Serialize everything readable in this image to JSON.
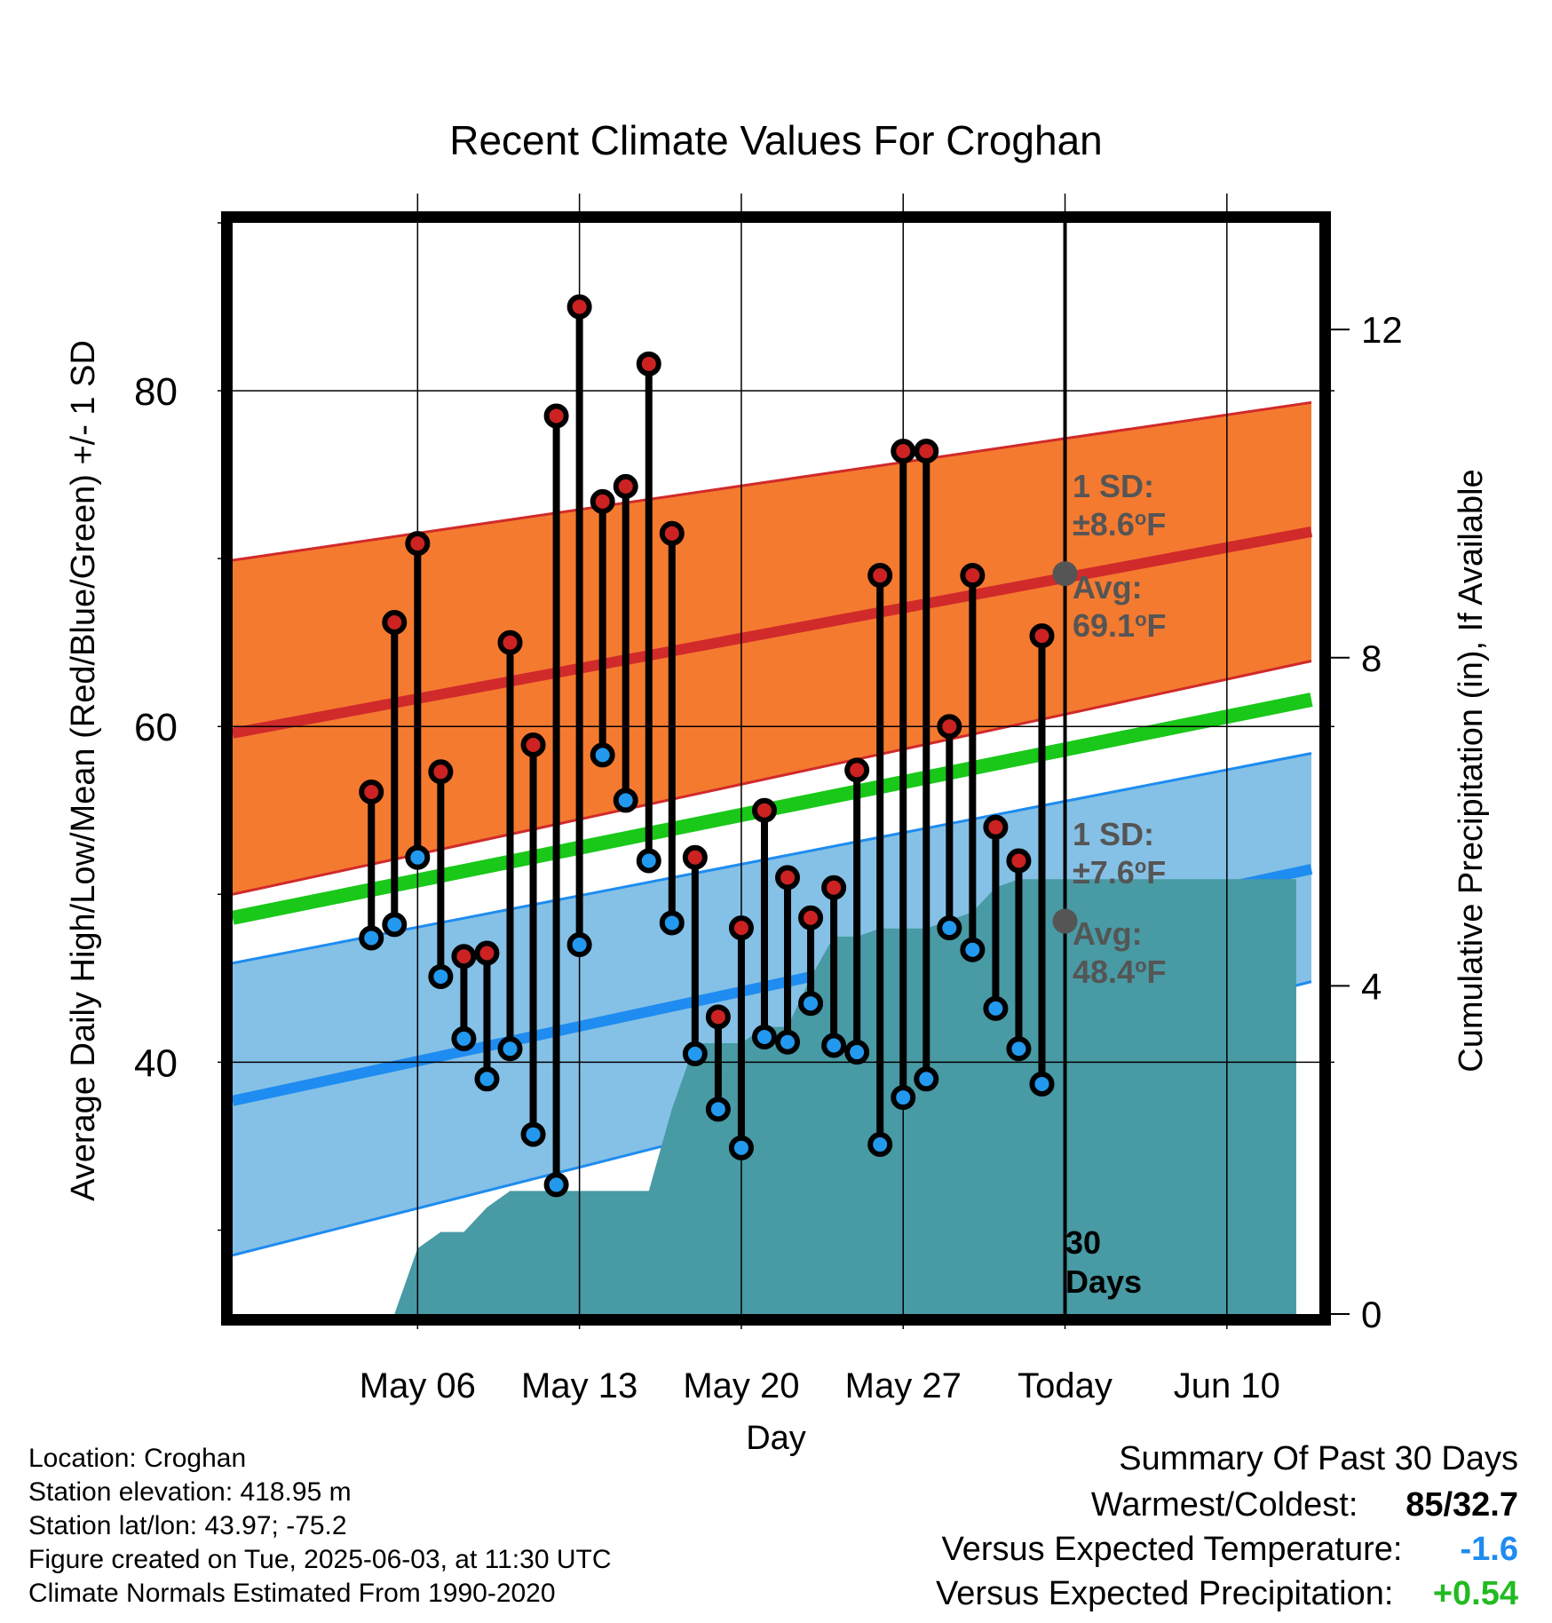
{
  "chart_data": {
    "type": "line",
    "title": "Recent Climate Values For Croghan",
    "xlabel": "Day",
    "ylabel": "Average Daily High/Low/Mean (Red/Blue/Green) +/- 1 SD",
    "y2label": "Cumulative Precipitation (in), If Available",
    "x_day_range": [
      -36,
      11
    ],
    "ylim": [
      25,
      90
    ],
    "y2lim": [
      0,
      13.3
    ],
    "yticks": [
      40,
      60,
      80
    ],
    "y2ticks": [
      0,
      4,
      8,
      12
    ],
    "x_ticks": [
      {
        "label": "May 06",
        "day": -28
      },
      {
        "label": "May 13",
        "day": -21
      },
      {
        "label": "May 20",
        "day": -14
      },
      {
        "label": "May 27",
        "day": -7
      },
      {
        "label": "Today",
        "day": 0
      },
      {
        "label": "Jun 10",
        "day": 7
      }
    ],
    "normals": {
      "high_avg": {
        "start": 59.6,
        "end": 71.6
      },
      "high_upper": {
        "start": 69.9,
        "end": 79.3
      },
      "high_lower": {
        "start": 50.0,
        "end": 63.9
      },
      "low_avg": {
        "start": 37.7,
        "end": 51.5
      },
      "low_upper": {
        "start": 45.9,
        "end": 58.4
      },
      "low_lower": {
        "start": 28.5,
        "end": 44.8
      },
      "mean": {
        "start": 48.6,
        "end": 61.6
      }
    },
    "daily": {
      "days": [
        -30,
        -29,
        -28,
        -27,
        -26,
        -25,
        -24,
        -23,
        -22,
        -21,
        -20,
        -19,
        -18,
        -17,
        -16,
        -15,
        -14,
        -13,
        -12,
        -11,
        -10,
        -9,
        -8,
        -7,
        -6,
        -5,
        -4,
        -3,
        -2,
        -1
      ],
      "high": [
        56.1,
        66.2,
        70.9,
        57.3,
        46.3,
        46.5,
        65.0,
        58.9,
        78.5,
        85.0,
        73.4,
        74.3,
        81.6,
        71.5,
        52.2,
        42.7,
        48.0,
        55.0,
        51.0,
        48.6,
        50.4,
        57.4,
        69.0,
        76.4,
        76.4,
        60.0,
        69.0,
        54.0,
        52.0,
        65.4
      ],
      "low": [
        47.4,
        48.2,
        52.2,
        45.1,
        41.4,
        39.0,
        40.8,
        35.7,
        32.7,
        47.0,
        58.3,
        55.6,
        52.0,
        48.3,
        40.5,
        37.2,
        34.9,
        41.5,
        41.2,
        43.5,
        41.0,
        40.6,
        35.1,
        37.9,
        39.0,
        48.0,
        46.7,
        43.2,
        40.8,
        38.7
      ]
    },
    "precip": {
      "days": [
        -30,
        -29,
        -28,
        -27,
        -26,
        -25,
        -24,
        -23,
        -22,
        -21,
        -20,
        -19,
        -18,
        -17,
        -16,
        -15,
        -14,
        -13,
        -12,
        -11,
        -10,
        -9,
        -8,
        -7,
        -6,
        -5,
        -4,
        -3,
        -2,
        -1,
        0,
        10
      ],
      "values": [
        0,
        0,
        0.8,
        1.0,
        1.0,
        1.3,
        1.5,
        1.5,
        1.5,
        1.5,
        1.5,
        1.5,
        1.5,
        2.5,
        3.3,
        3.3,
        3.3,
        3.5,
        3.5,
        4.1,
        4.6,
        4.6,
        4.7,
        4.7,
        4.7,
        4.8,
        4.9,
        5.2,
        5.3,
        5.3,
        5.3,
        5.3
      ]
    },
    "annotations": {
      "high_sd_label": "1 SD:",
      "high_sd_value": "±8.6",
      "high_avg_label": "Avg:",
      "high_avg_value": "69.1",
      "low_sd_label": "1 SD:",
      "low_sd_value": "±7.6",
      "low_avg_label": "Avg:",
      "low_avg_value": "48.4",
      "unit_deg": "o",
      "unit_f": "F",
      "period_number": "30",
      "period_word": "Days"
    },
    "colors": {
      "high_band": "#f47a30",
      "high_line": "#d12a2a",
      "low_band": "#85c1e6",
      "low_line": "#1e8cf0",
      "mean_line": "#19c819",
      "precip_fill": "#489aa4",
      "high_dot": "#cc2222",
      "low_dot": "#2299ee",
      "annotation": "#555555"
    },
    "grid": true
  },
  "info": {
    "location": "Location: Croghan",
    "elevation": "Station elevation: 418.95 m",
    "latlon": "Station lat/lon: 43.97; -75.2",
    "created": "Figure created on Tue, 2025-06-03, at 11:30 UTC",
    "normals": "Climate Normals Estimated From 1990-2020"
  },
  "summary": {
    "title": "Summary Of Past 30 Days",
    "warmest_label": "Warmest/Coldest:",
    "warmest_value": "85/32.7",
    "temp_label": "Versus Expected Temperature:",
    "temp_value": "-1.6",
    "temp_color": "#1e8cf0",
    "precip_label": "Versus Expected Precipitation:",
    "precip_value": "+0.54",
    "precip_color": "#22bb22"
  }
}
